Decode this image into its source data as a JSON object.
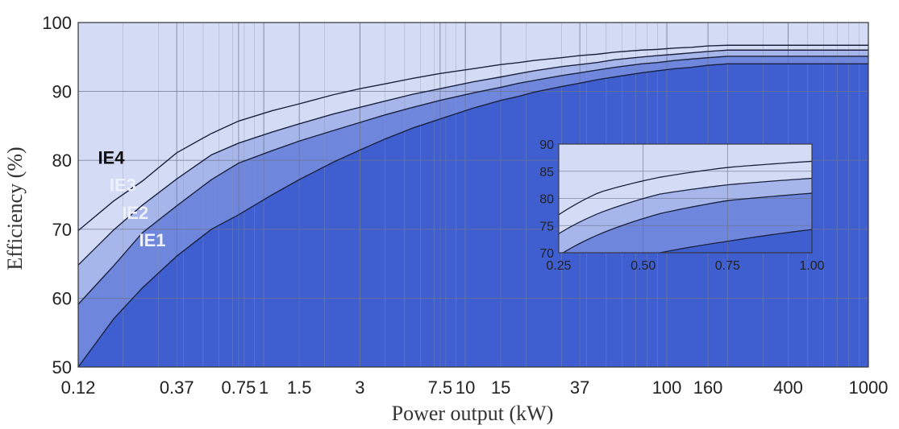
{
  "chart_data": {
    "type": "area",
    "xscale": "log",
    "xlabel": "Power output (kW)",
    "ylabel": "Efficiency (%)",
    "xlim": [
      0.12,
      1000
    ],
    "ylim": [
      50,
      100
    ],
    "x_ticks": [
      "0.12",
      "0.37",
      "0.75",
      "1",
      "1.5",
      "3",
      "7.5",
      "10",
      "15",
      "37",
      "100",
      "160",
      "400",
      "1000"
    ],
    "x_tick_values": [
      0.12,
      0.37,
      0.75,
      1,
      1.5,
      3,
      7.5,
      10,
      15,
      37,
      100,
      160,
      400,
      1000
    ],
    "y_ticks": [
      "50",
      "60",
      "70",
      "80",
      "90",
      "100"
    ],
    "y_tick_values": [
      50,
      60,
      70,
      80,
      90,
      100
    ],
    "grid": true,
    "x": [
      0.12,
      0.18,
      0.25,
      0.37,
      0.55,
      0.75,
      1.1,
      1.5,
      2.2,
      3,
      4,
      5.5,
      7.5,
      11,
      15,
      18.5,
      22,
      30,
      37,
      45,
      55,
      75,
      90,
      110,
      132,
      160,
      200,
      250,
      315,
      400,
      1000
    ],
    "series": [
      {
        "name": "IE1",
        "color": "#3f5fd0",
        "values": [
          50.0,
          57.0,
          61.5,
          66.1,
          70.0,
          72.1,
          75.0,
          77.2,
          79.7,
          81.5,
          83.1,
          84.7,
          86.0,
          87.6,
          88.7,
          89.3,
          89.9,
          90.7,
          91.2,
          91.7,
          92.1,
          92.7,
          93.0,
          93.3,
          93.5,
          93.8,
          94.0,
          94.0,
          94.0,
          94.0,
          94.0
        ]
      },
      {
        "name": "IE2",
        "color": "#6e86dc",
        "values": [
          59.1,
          64.7,
          69.5,
          73.4,
          77.2,
          79.6,
          81.4,
          82.8,
          84.3,
          85.5,
          86.6,
          87.7,
          88.7,
          89.8,
          90.6,
          91.2,
          91.6,
          92.3,
          92.7,
          93.1,
          93.5,
          94.0,
          94.2,
          94.5,
          94.7,
          94.9,
          95.1,
          95.1,
          95.1,
          95.1,
          95.1
        ]
      },
      {
        "name": "IE3",
        "color": "#a7b6ea",
        "values": [
          64.8,
          69.9,
          73.5,
          77.3,
          80.8,
          82.5,
          84.1,
          85.3,
          86.7,
          87.7,
          88.6,
          89.6,
          90.4,
          91.4,
          92.1,
          92.6,
          93.0,
          93.6,
          93.9,
          94.2,
          94.6,
          95.0,
          95.2,
          95.4,
          95.6,
          95.8,
          96.0,
          96.0,
          96.0,
          96.0,
          96.0
        ]
      },
      {
        "name": "IE4",
        "color": "#d3dbf5",
        "values": [
          69.8,
          74.1,
          77.0,
          81.1,
          83.9,
          85.7,
          87.2,
          88.2,
          89.5,
          90.4,
          91.1,
          91.9,
          92.6,
          93.3,
          93.9,
          94.2,
          94.5,
          94.9,
          95.2,
          95.4,
          95.7,
          96.0,
          96.1,
          96.3,
          96.4,
          96.6,
          96.7,
          96.7,
          96.7,
          96.7,
          96.7
        ]
      }
    ],
    "labels": [
      {
        "text": "IE4",
        "color": "#111111",
        "x": 0.175,
        "y": 79.5
      },
      {
        "text": "IE3",
        "color": "#eef1fb",
        "x": 0.2,
        "y": 75.5
      },
      {
        "text": "IE2",
        "color": "#eef1fb",
        "x": 0.23,
        "y": 71.5
      },
      {
        "text": "IE1",
        "color": "#eef1fb",
        "x": 0.28,
        "y": 67.5
      }
    ],
    "inset": {
      "type": "area",
      "xlim": [
        0.25,
        1.0
      ],
      "ylim": [
        70,
        90
      ],
      "x_ticks": [
        "0.25",
        "0.50",
        "0.75",
        "1.00"
      ],
      "x_tick_values": [
        0.25,
        0.5,
        0.75,
        1.0
      ],
      "y_ticks": [
        "70",
        "75",
        "80",
        "85",
        "90"
      ],
      "y_tick_values": [
        70,
        75,
        80,
        85,
        90
      ]
    }
  }
}
